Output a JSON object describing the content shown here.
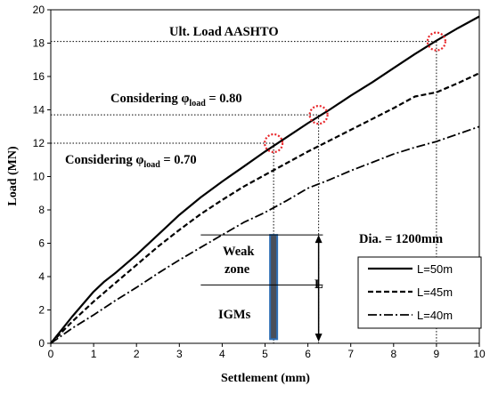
{
  "chart_data": {
    "type": "line",
    "xlabel": "Settlement (mm)",
    "ylabel": "Load (MN)",
    "xlim": [
      0,
      10
    ],
    "ylim": [
      0,
      20
    ],
    "x_ticks": [
      0,
      1,
      2,
      3,
      4,
      5,
      6,
      7,
      8,
      9,
      10
    ],
    "y_ticks": [
      0,
      2,
      4,
      6,
      8,
      10,
      12,
      14,
      16,
      18,
      20
    ],
    "grid": false,
    "legend_position": "right",
    "series": [
      {
        "name": "L=50m",
        "style": "solid",
        "x": [
          0,
          0.5,
          1,
          1.25,
          1.5,
          2,
          2.5,
          3,
          3.5,
          4,
          4.5,
          5,
          5.5,
          6,
          6.5,
          7,
          7.5,
          8,
          8.5,
          9,
          9.5,
          10
        ],
        "y": [
          0,
          1.6,
          3.1,
          3.7,
          4.2,
          5.3,
          6.5,
          7.7,
          8.75,
          9.7,
          10.6,
          11.5,
          12.35,
          13.2,
          14.0,
          14.85,
          15.65,
          16.5,
          17.35,
          18.15,
          18.9,
          19.6
        ]
      },
      {
        "name": "L=45m",
        "style": "dash",
        "x": [
          0,
          0.5,
          1,
          1.5,
          2,
          2.5,
          3,
          3.5,
          4,
          4.5,
          5,
          5.5,
          6,
          6.5,
          7,
          7.5,
          8,
          8.5,
          9,
          9.5,
          10
        ],
        "y": [
          0,
          1.3,
          2.5,
          3.6,
          4.7,
          5.8,
          6.8,
          7.75,
          8.6,
          9.4,
          10.1,
          10.8,
          11.5,
          12.15,
          12.8,
          13.45,
          14.1,
          14.8,
          15.05,
          15.6,
          16.2
        ]
      },
      {
        "name": "L=40m",
        "style": "dashdot",
        "x": [
          0,
          0.5,
          1,
          1.5,
          2,
          2.5,
          3,
          3.5,
          4,
          4.5,
          5,
          5.5,
          6,
          6.5,
          7,
          7.5,
          8,
          8.5,
          9,
          9.5,
          10
        ],
        "y": [
          0,
          0.9,
          1.7,
          2.55,
          3.35,
          4.2,
          5.0,
          5.75,
          6.5,
          7.25,
          7.85,
          8.55,
          9.3,
          9.8,
          10.35,
          10.85,
          11.35,
          11.75,
          12.1,
          12.55,
          13.0
        ]
      }
    ],
    "markers": [
      {
        "x": 5.2,
        "y": 12.0
      },
      {
        "x": 6.25,
        "y": 13.7
      },
      {
        "x": 9.0,
        "y": 18.1
      }
    ],
    "annotations": {
      "ult_load": "Ult. Load AASHTO",
      "phi080_prefix": "Considering φ",
      "phi080_sub": "load",
      "phi080_suffix": " = 0.80",
      "phi070_prefix": "Considering φ",
      "phi070_sub": "load",
      "phi070_suffix": " = 0.70",
      "diameter": "Dia. = 1200mm",
      "weak_zone_line1": "Weak",
      "weak_zone_line2": "zone",
      "igms": "IGMs",
      "length_label": "L"
    },
    "colors": {
      "marker": "#e8262a",
      "pile_fill": "#4a4f5a",
      "pile_edge": "#2f6fb5",
      "line": "#000000"
    }
  }
}
